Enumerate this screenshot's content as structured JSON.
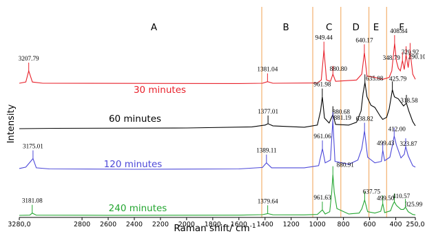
{
  "chart_data": {
    "type": "line",
    "title": "",
    "xlabel": "Raman shift/ cm",
    "xlabel_superscript": "-1",
    "ylabel": "Intensity",
    "xlim": [
      3280,
      250
    ],
    "x_reversed": true,
    "x_ticks": [
      {
        "value": 3280,
        "label": "3280,0"
      },
      {
        "value": 2800,
        "label": "2800"
      },
      {
        "value": 2600,
        "label": "2600"
      },
      {
        "value": 2400,
        "label": "2400"
      },
      {
        "value": 2200,
        "label": "2200"
      },
      {
        "value": 2000,
        "label": "2000"
      },
      {
        "value": 1800,
        "label": "1800"
      },
      {
        "value": 1600,
        "label": "1600"
      },
      {
        "value": 1400,
        "label": "1400"
      },
      {
        "value": 1200,
        "label": "1200"
      },
      {
        "value": 1000,
        "label": "1000"
      },
      {
        "value": 800,
        "label": "800"
      },
      {
        "value": 600,
        "label": "600"
      },
      {
        "value": 400,
        "label": "400"
      },
      {
        "value": 250,
        "label": "250,0"
      }
    ],
    "regions": [
      {
        "label": "A",
        "center": 2250
      },
      {
        "label": "B",
        "center": 1240
      },
      {
        "label": "C",
        "center": 910
      },
      {
        "label": "D",
        "center": 705
      },
      {
        "label": "E",
        "center": 550
      },
      {
        "label": "F",
        "center": 355
      }
    ],
    "region_dividers": [
      1425,
      1035,
      820,
      605,
      470
    ],
    "series": [
      {
        "name": "30 minutes",
        "color": "#e8202a",
        "points": [
          [
            3280,
            0.1
          ],
          [
            3230,
            0.3
          ],
          [
            3207.79,
            2.0
          ],
          [
            3180,
            0.3
          ],
          [
            3100,
            0.1
          ],
          [
            2400,
            0.08
          ],
          [
            1600,
            0.06
          ],
          [
            1420,
            0.1
          ],
          [
            1381.04,
            0.35
          ],
          [
            1340,
            0.1
          ],
          [
            1000,
            0.15
          ],
          [
            970,
            0.6
          ],
          [
            949.44,
            5.2
          ],
          [
            930,
            0.6
          ],
          [
            900,
            0.4
          ],
          [
            880.8,
            1.5
          ],
          [
            860,
            0.4
          ],
          [
            700,
            0.6
          ],
          [
            660,
            1.5
          ],
          [
            640.17,
            4.8
          ],
          [
            620,
            1.2
          ],
          [
            560,
            1.0
          ],
          [
            500,
            0.7
          ],
          [
            450,
            1.0
          ],
          [
            430,
            2.0
          ],
          [
            408.84,
            6.2
          ],
          [
            395,
            3.5
          ],
          [
            380,
            2.4
          ],
          [
            365,
            2.0
          ],
          [
            348.79,
            3.6
          ],
          [
            335,
            2.2
          ],
          [
            320.92,
            4.5
          ],
          [
            305,
            2.5
          ],
          [
            290.1,
            5.0
          ],
          [
            270,
            1.5
          ],
          [
            250,
            0.7
          ]
        ]
      },
      {
        "name": "60 minutes",
        "color": "#000000",
        "points": [
          [
            3280,
            0.0
          ],
          [
            3000,
            0.05
          ],
          [
            2000,
            0.1
          ],
          [
            1500,
            0.25
          ],
          [
            1400,
            0.5
          ],
          [
            1377.01,
            0.7
          ],
          [
            1340,
            0.4
          ],
          [
            1100,
            0.2
          ],
          [
            1000,
            0.5
          ],
          [
            975,
            2.5
          ],
          [
            961.98,
            4.5
          ],
          [
            945,
            1.5
          ],
          [
            910,
            0.8
          ],
          [
            880.68,
            2.0
          ],
          [
            860,
            0.6
          ],
          [
            760,
            0.5
          ],
          [
            700,
            0.9
          ],
          [
            665,
            2.5
          ],
          [
            650,
            5.0
          ],
          [
            635.88,
            6.5
          ],
          [
            620,
            4.5
          ],
          [
            590,
            3.3
          ],
          [
            560,
            3.0
          ],
          [
            520,
            1.8
          ],
          [
            500,
            1.3
          ],
          [
            470,
            1.6
          ],
          [
            450,
            2.8
          ],
          [
            430,
            5.0
          ],
          [
            425.79,
            5.5
          ],
          [
            410,
            4.5
          ],
          [
            380,
            4.2
          ],
          [
            340,
            3.2
          ],
          [
            318.58,
            3.6
          ],
          [
            300,
            2.5
          ],
          [
            270,
            1.0
          ],
          [
            250,
            0.4
          ]
        ]
      },
      {
        "name": "120 minutes",
        "color": "#4b47d8",
        "points": [
          [
            3280,
            0.2
          ],
          [
            3230,
            0.4
          ],
          [
            3175.01,
            1.6
          ],
          [
            3150,
            0.3
          ],
          [
            3050,
            0.15
          ],
          [
            2400,
            0.1
          ],
          [
            1600,
            0.15
          ],
          [
            1420,
            0.35
          ],
          [
            1389.11,
            1.0
          ],
          [
            1350,
            0.3
          ],
          [
            1100,
            0.3
          ],
          [
            990,
            0.6
          ],
          [
            961.06,
            3.0
          ],
          [
            940,
            1.0
          ],
          [
            900,
            1.4
          ],
          [
            881.19,
            7.0
          ],
          [
            865,
            1.2
          ],
          [
            760,
            0.8
          ],
          [
            690,
            1.4
          ],
          [
            660,
            3.0
          ],
          [
            638.82,
            5.5
          ],
          [
            615,
            1.8
          ],
          [
            560,
            1.0
          ],
          [
            510,
            1.2
          ],
          [
            499.43,
            2.8
          ],
          [
            485,
            1.3
          ],
          [
            445,
            1.8
          ],
          [
            425,
            3.5
          ],
          [
            412.0,
            4.8
          ],
          [
            395,
            3.5
          ],
          [
            360,
            1.7
          ],
          [
            335,
            2.2
          ],
          [
            323.87,
            3.3
          ],
          [
            305,
            2.0
          ],
          [
            270,
            0.6
          ],
          [
            250,
            0.4
          ]
        ]
      },
      {
        "name": "240 minutes",
        "color": "#22a52f",
        "points": [
          [
            3280,
            0.0
          ],
          [
            3200,
            0.05
          ],
          [
            3181.08,
            0.5
          ],
          [
            3150,
            0.05
          ],
          [
            2600,
            0.02
          ],
          [
            1600,
            0.05
          ],
          [
            1420,
            0.15
          ],
          [
            1379.64,
            0.4
          ],
          [
            1340,
            0.12
          ],
          [
            1100,
            0.1
          ],
          [
            1000,
            0.2
          ],
          [
            961.63,
            1.2
          ],
          [
            940,
            0.3
          ],
          [
            905,
            0.8
          ],
          [
            890,
            5.0
          ],
          [
            880.91,
            9.0
          ],
          [
            870,
            5.0
          ],
          [
            850,
            1.5
          ],
          [
            760,
            0.3
          ],
          [
            680,
            0.5
          ],
          [
            660,
            1.4
          ],
          [
            637.75,
            3.4
          ],
          [
            615,
            0.8
          ],
          [
            560,
            0.5
          ],
          [
            515,
            0.9
          ],
          [
            499.5,
            2.6
          ],
          [
            485,
            0.6
          ],
          [
            440,
            1.0
          ],
          [
            425,
            2.2
          ],
          [
            410.57,
            3.0
          ],
          [
            395,
            2.2
          ],
          [
            360,
            1.3
          ],
          [
            340,
            1.3
          ],
          [
            325.99,
            1.8
          ],
          [
            305,
            0.8
          ],
          [
            270,
            0.2
          ],
          [
            250,
            0.1
          ]
        ]
      }
    ],
    "peak_labels": [
      {
        "series": "30 minutes",
        "x": 3207.79,
        "label": "3207.79"
      },
      {
        "series": "30 minutes",
        "x": 1381.04,
        "label": "1381.04"
      },
      {
        "series": "30 minutes",
        "x": 949.44,
        "label": "949.44"
      },
      {
        "series": "30 minutes",
        "x": 880.8,
        "label": "880.80"
      },
      {
        "series": "30 minutes",
        "x": 640.17,
        "label": "640.17"
      },
      {
        "series": "30 minutes",
        "x": 408.84,
        "label": "408.84"
      },
      {
        "series": "30 minutes",
        "x": 348.79,
        "label": "348.79"
      },
      {
        "series": "30 minutes",
        "x": 320.92,
        "label": "320.92"
      },
      {
        "series": "30 minutes",
        "x": 290.1,
        "label": "290.10"
      },
      {
        "series": "60 minutes",
        "x": 1377.01,
        "label": "1377.01"
      },
      {
        "series": "60 minutes",
        "x": 961.98,
        "label": "961.98"
      },
      {
        "series": "60 minutes",
        "x": 880.68,
        "label": "880.68"
      },
      {
        "series": "60 minutes",
        "x": 635.88,
        "label": "635.88"
      },
      {
        "series": "60 minutes",
        "x": 425.79,
        "label": "425.79"
      },
      {
        "series": "60 minutes",
        "x": 318.58,
        "label": "318.58"
      },
      {
        "series": "120 minutes",
        "x": 3175.01,
        "label": "3175.01"
      },
      {
        "series": "120 minutes",
        "x": 1389.11,
        "label": "1389.11"
      },
      {
        "series": "120 minutes",
        "x": 961.06,
        "label": "961.06"
      },
      {
        "series": "120 minutes",
        "x": 881.19,
        "label": "881.19"
      },
      {
        "series": "120 minutes",
        "x": 638.82,
        "label": "638.82"
      },
      {
        "series": "120 minutes",
        "x": 499.43,
        "label": "499.43"
      },
      {
        "series": "120 minutes",
        "x": 412.0,
        "label": "412.00"
      },
      {
        "series": "120 minutes",
        "x": 323.87,
        "label": "323.87"
      },
      {
        "series": "240 minutes",
        "x": 3181.08,
        "label": "3181.08"
      },
      {
        "series": "240 minutes",
        "x": 1379.64,
        "label": "1379.64"
      },
      {
        "series": "240 minutes",
        "x": 961.63,
        "label": "961.63"
      },
      {
        "series": "240 minutes",
        "x": 880.91,
        "label": "880.91"
      },
      {
        "series": "240 minutes",
        "x": 637.75,
        "label": "637.75"
      },
      {
        "series": "240 minutes",
        "x": 499.5,
        "label": "499.50"
      },
      {
        "series": "240 minutes",
        "x": 410.57,
        "label": "410.57"
      },
      {
        "series": "240 minutes",
        "x": 325.99,
        "label": "325.99"
      }
    ],
    "legend": "inline labels on each trace",
    "grid": false,
    "divider_color": "#f0a050"
  }
}
